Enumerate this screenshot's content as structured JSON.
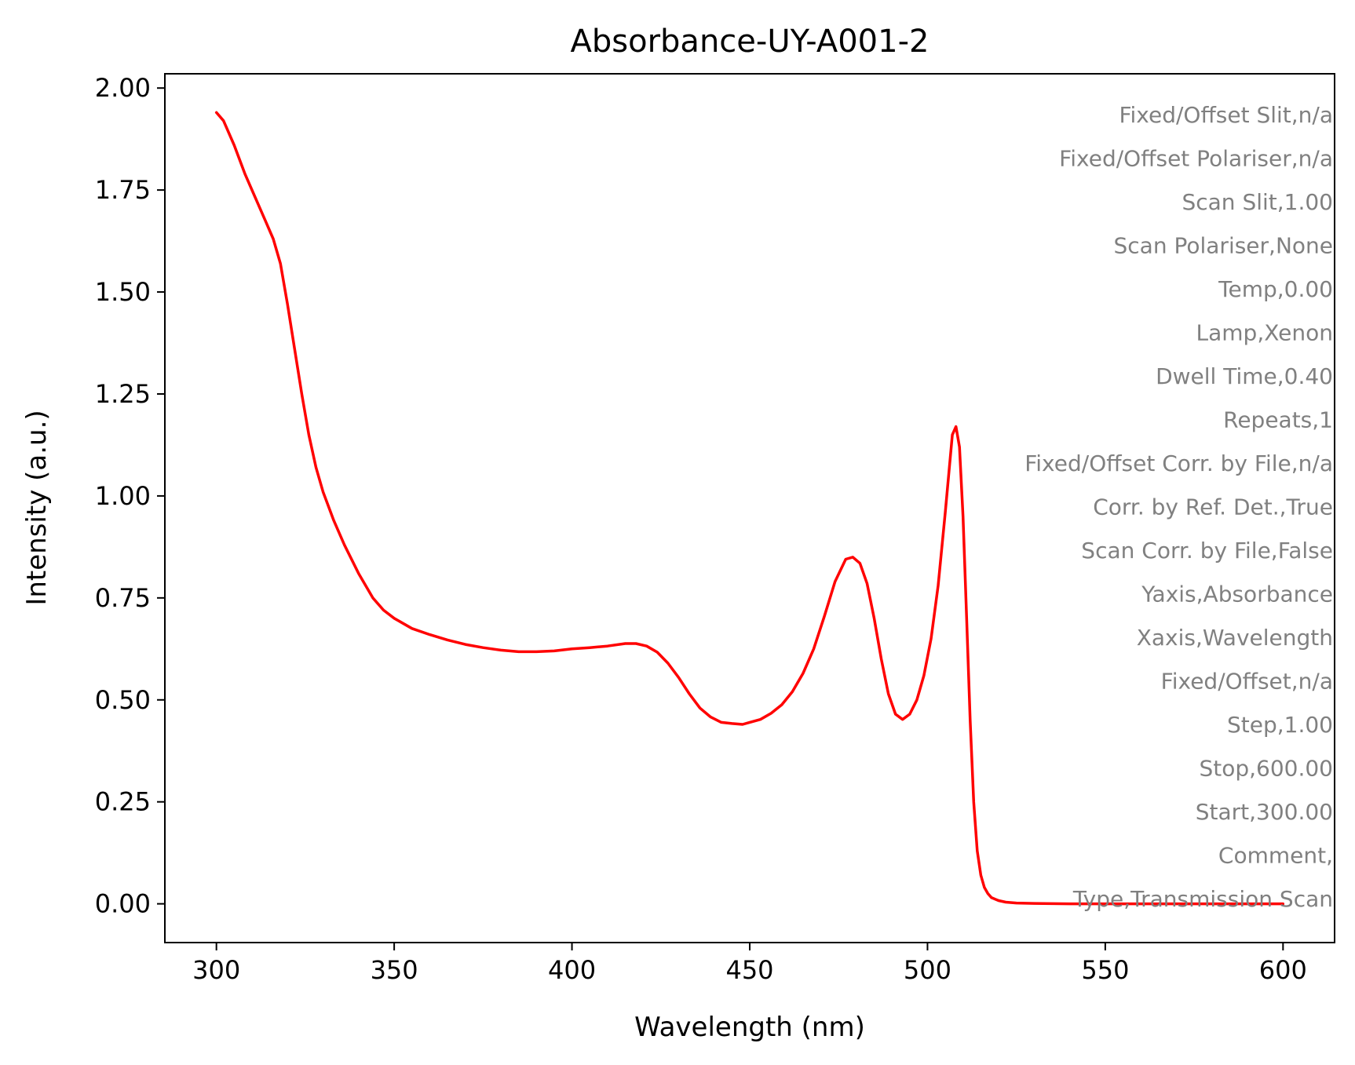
{
  "chart_data": {
    "type": "line",
    "title": "Absorbance-UY-A001-2",
    "xlabel": "Wavelength (nm)",
    "ylabel": "Intensity (a.u.)",
    "xlim": [
      285.5,
      614.5
    ],
    "ylim": [
      -0.095,
      2.035
    ],
    "xticks": [
      300,
      350,
      400,
      450,
      500,
      550,
      600
    ],
    "yticks": [
      0.0,
      0.25,
      0.5,
      0.75,
      1.0,
      1.25,
      1.5,
      1.75,
      2.0
    ],
    "xtick_labels": [
      "300",
      "350",
      "400",
      "450",
      "500",
      "550",
      "600"
    ],
    "ytick_labels": [
      "0.00",
      "0.25",
      "0.50",
      "0.75",
      "1.00",
      "1.25",
      "1.50",
      "1.75",
      "2.00"
    ],
    "grid": false,
    "line_color": "#ff0000",
    "annotation_color": "#808080",
    "series": [
      {
        "x": [
          300,
          302,
          305,
          308,
          311,
          314,
          316,
          318,
          320,
          322,
          324,
          326,
          328,
          330,
          333,
          336,
          340,
          344,
          347,
          350,
          355,
          360,
          365,
          370,
          375,
          380,
          385,
          390,
          395,
          400,
          405,
          410,
          415,
          418,
          421,
          424,
          427,
          430,
          433,
          436,
          439,
          442,
          445,
          448,
          450,
          453,
          456,
          459,
          462,
          465,
          468,
          471,
          474,
          477,
          479,
          481,
          483,
          485,
          487,
          489,
          491,
          493,
          495,
          497,
          499,
          501,
          503,
          505,
          507,
          508,
          509,
          510,
          511,
          512,
          513,
          514,
          515,
          516,
          517,
          518,
          520,
          522,
          525,
          530,
          540,
          550,
          560,
          570,
          580,
          590,
          600
        ],
        "y": [
          1.94,
          1.92,
          1.86,
          1.79,
          1.73,
          1.67,
          1.63,
          1.57,
          1.47,
          1.36,
          1.25,
          1.15,
          1.07,
          1.01,
          0.94,
          0.88,
          0.81,
          0.75,
          0.72,
          0.7,
          0.675,
          0.66,
          0.647,
          0.636,
          0.628,
          0.622,
          0.618,
          0.618,
          0.62,
          0.625,
          0.628,
          0.632,
          0.638,
          0.638,
          0.632,
          0.617,
          0.59,
          0.555,
          0.515,
          0.48,
          0.458,
          0.445,
          0.442,
          0.44,
          0.445,
          0.452,
          0.467,
          0.488,
          0.52,
          0.565,
          0.625,
          0.705,
          0.79,
          0.845,
          0.85,
          0.835,
          0.785,
          0.7,
          0.6,
          0.515,
          0.465,
          0.452,
          0.465,
          0.5,
          0.56,
          0.65,
          0.78,
          0.96,
          1.15,
          1.17,
          1.12,
          0.95,
          0.7,
          0.45,
          0.25,
          0.13,
          0.07,
          0.04,
          0.025,
          0.015,
          0.008,
          0.004,
          0.002,
          0.001,
          0.0,
          0.0,
          0.0,
          0.0,
          0.0,
          0.0,
          0.0
        ]
      }
    ],
    "annotations": [
      "Fixed/Offset Slit,n/a",
      "Fixed/Offset Polariser,n/a",
      "Scan Slit,1.00",
      "Scan Polariser,None",
      "Temp,0.00",
      "Lamp,Xenon",
      "Dwell Time,0.40",
      "Repeats,1",
      "Fixed/Offset Corr. by File,n/a",
      "Corr. by Ref. Det.,True",
      "Scan Corr. by File,False",
      "Yaxis,Absorbance",
      "Xaxis,Wavelength",
      "Fixed/Offset,n/a",
      "Step,1.00",
      "Stop,600.00",
      "Start,300.00",
      "Comment,",
      "Type,Transmission Scan"
    ]
  }
}
